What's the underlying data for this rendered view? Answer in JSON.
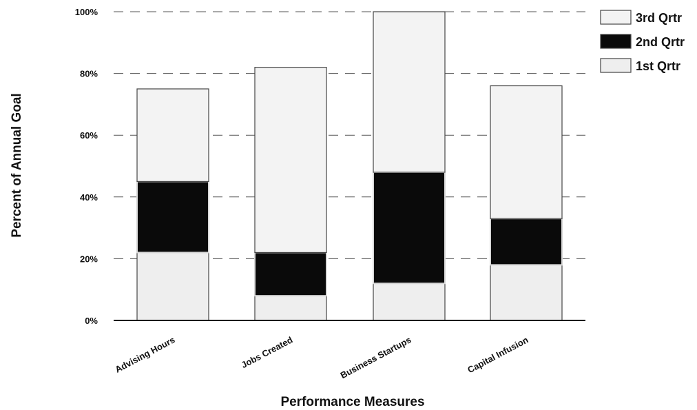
{
  "chart_data": {
    "type": "bar",
    "stacked": true,
    "title": "",
    "xlabel": "Performance Measures",
    "ylabel": "Percent of Annual Goal",
    "ylim": [
      0,
      100
    ],
    "yticks": [
      "0%",
      "20%",
      "40%",
      "60%",
      "80%",
      "100%"
    ],
    "categories": [
      "Advising Hours",
      "Jobs Created",
      "Business Startups",
      "Capital Infusion"
    ],
    "series": [
      {
        "name": "1st Qrtr",
        "values": [
          22,
          8,
          12,
          18
        ],
        "color": "#eeeeee"
      },
      {
        "name": "2nd Qrtr",
        "values": [
          23,
          14,
          36,
          15
        ],
        "color": "#0a0a0a"
      },
      {
        "name": "3rd Qrtr",
        "values": [
          30,
          60,
          52,
          43
        ],
        "color": "#f3f3f3"
      }
    ],
    "legend_order": [
      "3rd Qrtr",
      "2nd Qrtr",
      "1st Qrtr"
    ],
    "legend_position": "top-right",
    "grid": true
  }
}
